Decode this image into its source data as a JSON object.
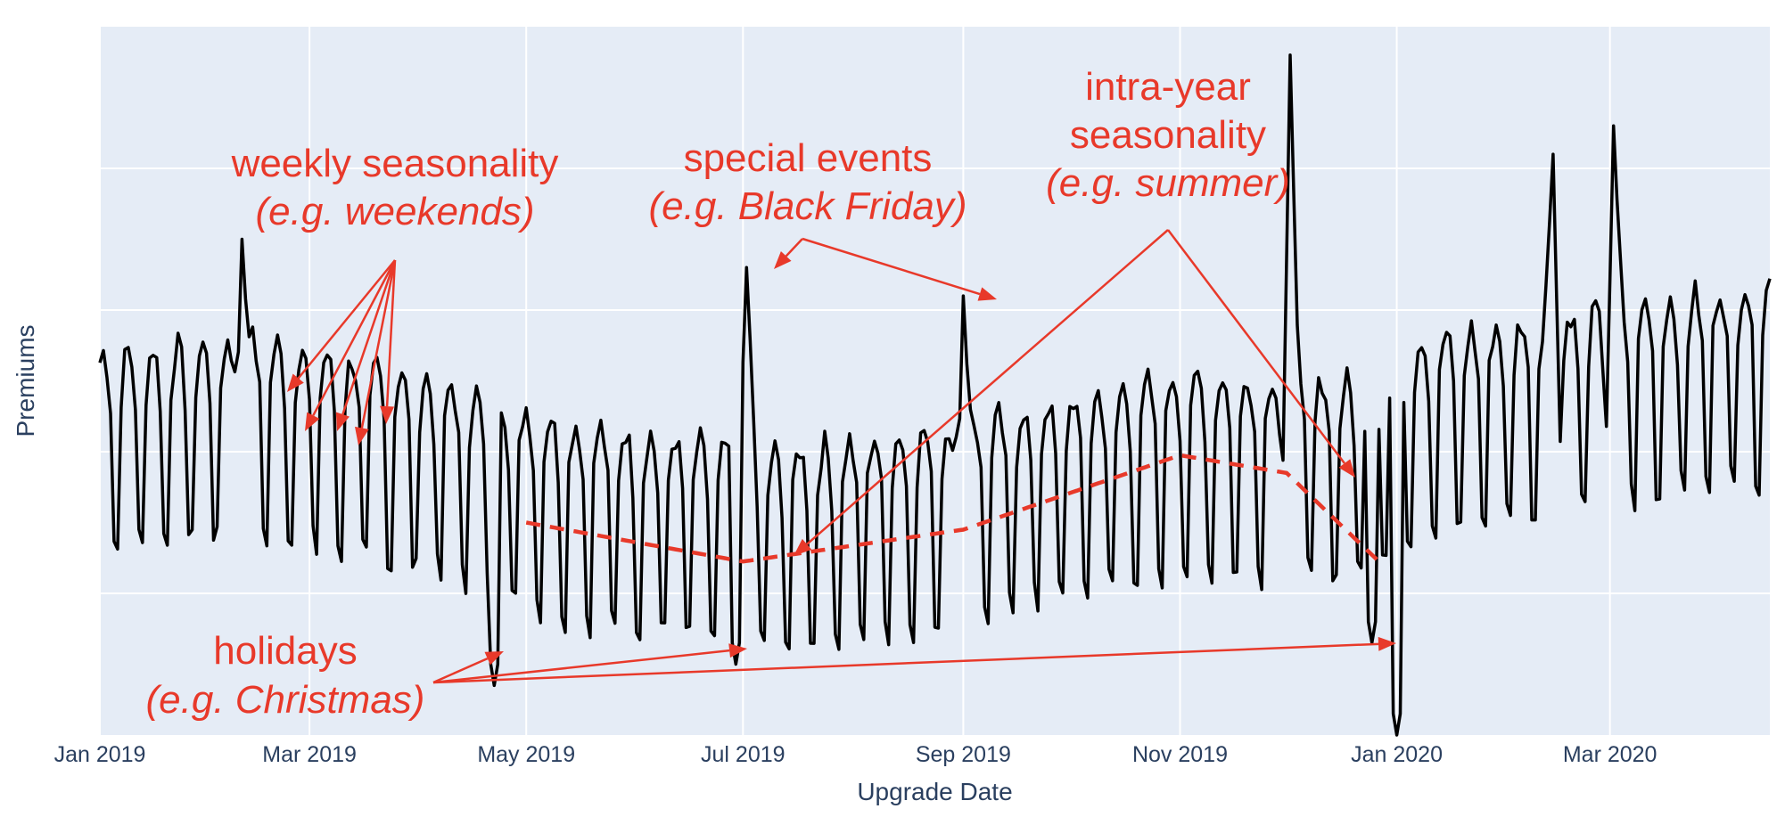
{
  "chart_data": {
    "type": "line",
    "title": "",
    "xlabel": "Upgrade Date",
    "ylabel": "Premiums",
    "x_range": [
      "2019-01-01",
      "2020-04-15"
    ],
    "y_range": [
      0,
      100
    ],
    "y_tick_labels_shown": false,
    "grid": true,
    "x_ticks": [
      {
        "date": "2019-01-01",
        "label": "Jan 2019"
      },
      {
        "date": "2019-03-01",
        "label": "Mar 2019"
      },
      {
        "date": "2019-05-01",
        "label": "May 2019"
      },
      {
        "date": "2019-07-01",
        "label": "Jul 2019"
      },
      {
        "date": "2019-09-01",
        "label": "Sep 2019"
      },
      {
        "date": "2019-11-01",
        "label": "Nov 2019"
      },
      {
        "date": "2020-01-01",
        "label": "Jan 2020"
      },
      {
        "date": "2020-03-01",
        "label": "Mar 2020"
      }
    ],
    "y_gridlines": [
      20,
      40,
      60,
      80
    ],
    "series": [
      {
        "name": "Premiums",
        "color": "#000000",
        "base_level": [
          {
            "date": "2019-01-01",
            "value": 40
          },
          {
            "date": "2019-02-15",
            "value": 42
          },
          {
            "date": "2019-04-01",
            "value": 37
          },
          {
            "date": "2019-05-15",
            "value": 30
          },
          {
            "date": "2019-07-10",
            "value": 26
          },
          {
            "date": "2019-09-01",
            "value": 30
          },
          {
            "date": "2019-11-01",
            "value": 37
          },
          {
            "date": "2019-12-20",
            "value": 36
          },
          {
            "date": "2020-01-05",
            "value": 42
          },
          {
            "date": "2020-04-15",
            "value": 50
          }
        ],
        "weekly_amplitude": 14,
        "events": [
          {
            "date": "2019-02-10",
            "value": 70
          },
          {
            "date": "2019-07-02",
            "value": 66
          },
          {
            "date": "2019-09-01",
            "value": 62
          },
          {
            "date": "2019-12-02",
            "value": 96
          },
          {
            "date": "2020-02-14",
            "value": 82
          },
          {
            "date": "2020-03-02",
            "value": 86
          }
        ],
        "holidays": [
          {
            "date": "2019-04-22",
            "value": 7
          },
          {
            "date": "2019-06-29",
            "value": 10
          },
          {
            "date": "2019-12-25",
            "value": 13
          },
          {
            "date": "2020-01-01",
            "value": 0
          }
        ]
      },
      {
        "name": "intra-year seasonality trend",
        "color": "#e8392a",
        "style": "dashed",
        "points": [
          {
            "date": "2019-05-01",
            "value": 30
          },
          {
            "date": "2019-07-01",
            "value": 24.5
          },
          {
            "date": "2019-09-01",
            "value": 29
          },
          {
            "date": "2019-11-01",
            "value": 39.5
          },
          {
            "date": "2019-12-01",
            "value": 37
          },
          {
            "date": "2019-12-28",
            "value": 24
          }
        ]
      }
    ],
    "annotations": [
      {
        "id": "weekly",
        "line1": "weekly seasonality",
        "line2": "(e.g. weekends)"
      },
      {
        "id": "events",
        "line1": "special events",
        "line2": "(e.g. Black Friday)"
      },
      {
        "id": "intra",
        "line1": "intra-year",
        "line1b": "seasonality",
        "line2": "(e.g. summer)"
      },
      {
        "id": "holidays",
        "line1": "holidays",
        "line2": "(e.g. Christmas)"
      }
    ],
    "annotation_color": "#e8392a",
    "plot_bg_color": "#e5ecf6"
  }
}
